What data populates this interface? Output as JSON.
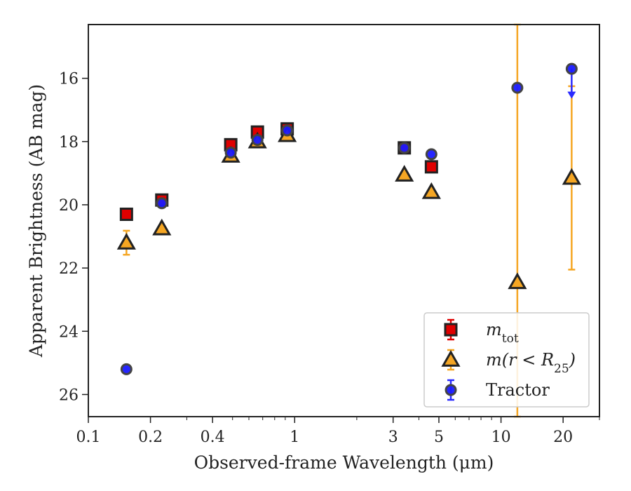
{
  "chart_data": {
    "type": "scatter",
    "title": "",
    "xlabel": "Observed-frame Wavelength (μm)",
    "ylabel": "Apparent Brightness (AB mag)",
    "x_scale": "log",
    "xlim": [
      0.1,
      30
    ],
    "ylim": [
      26.7,
      14.3
    ],
    "y_inverted": true,
    "x_ticks": [
      0.1,
      0.2,
      0.4,
      1,
      3,
      5,
      10,
      20
    ],
    "x_tick_labels": [
      "0.1",
      "0.2",
      "0.4",
      "1",
      "3",
      "5",
      "10",
      "20"
    ],
    "y_ticks": [
      16,
      18,
      20,
      22,
      24,
      26
    ],
    "y_tick_labels": [
      "16",
      "18",
      "20",
      "22",
      "24",
      "26"
    ],
    "grid": false,
    "legend_position": "lower right",
    "series": [
      {
        "name": "m_tot",
        "legend_label": "m",
        "legend_sub": "tot",
        "marker": "square",
        "color": "#e00000",
        "edge": "#222222",
        "errcolor": "#e00000",
        "points": [
          {
            "x": 0.153,
            "y": 20.3,
            "err": 0.05
          },
          {
            "x": 0.227,
            "y": 19.85,
            "err": 0.05
          },
          {
            "x": 0.49,
            "y": 18.1,
            "err": 0.05
          },
          {
            "x": 0.66,
            "y": 17.7,
            "err": 0.05
          },
          {
            "x": 0.92,
            "y": 17.6,
            "err": 0.05
          },
          {
            "x": 3.4,
            "y": 18.2,
            "err": 0.05
          },
          {
            "x": 4.6,
            "y": 18.8,
            "err": 0.05
          }
        ]
      },
      {
        "name": "m(r<R_25)",
        "legend_label": "m(r < R",
        "legend_sub": "25",
        "legend_suffix": ")",
        "marker": "triangle",
        "color": "#f5a623",
        "edge": "#222222",
        "errcolor": "#f5a623",
        "points": [
          {
            "x": 0.153,
            "y": 21.2,
            "err": 0.38
          },
          {
            "x": 0.227,
            "y": 20.75,
            "err": 0.05
          },
          {
            "x": 0.49,
            "y": 18.45,
            "err": 0.05
          },
          {
            "x": 0.66,
            "y": 18.0,
            "err": 0.05
          },
          {
            "x": 0.92,
            "y": 17.8,
            "err": 0.05
          },
          {
            "x": 3.4,
            "y": 19.05,
            "err": 0.05
          },
          {
            "x": 4.6,
            "y": 19.6,
            "err": 0.05
          },
          {
            "x": 12.0,
            "y": 22.45,
            "err": 9.0
          },
          {
            "x": 22.0,
            "y": 19.15,
            "err": 2.9
          }
        ]
      },
      {
        "name": "Tractor",
        "legend_label": "Tractor",
        "marker": "circle",
        "color": "#1a1aff",
        "edge": "#444444",
        "errcolor": "#2a2aff",
        "points": [
          {
            "x": 0.153,
            "y": 25.2
          },
          {
            "x": 0.227,
            "y": 19.95
          },
          {
            "x": 0.49,
            "y": 18.35
          },
          {
            "x": 0.66,
            "y": 17.95
          },
          {
            "x": 0.92,
            "y": 17.65
          },
          {
            "x": 3.4,
            "y": 18.2
          },
          {
            "x": 4.6,
            "y": 18.4
          },
          {
            "x": 12.0,
            "y": 16.3
          },
          {
            "x": 22.0,
            "y": 15.7,
            "upper_limit_to": 16.6
          }
        ]
      }
    ]
  }
}
